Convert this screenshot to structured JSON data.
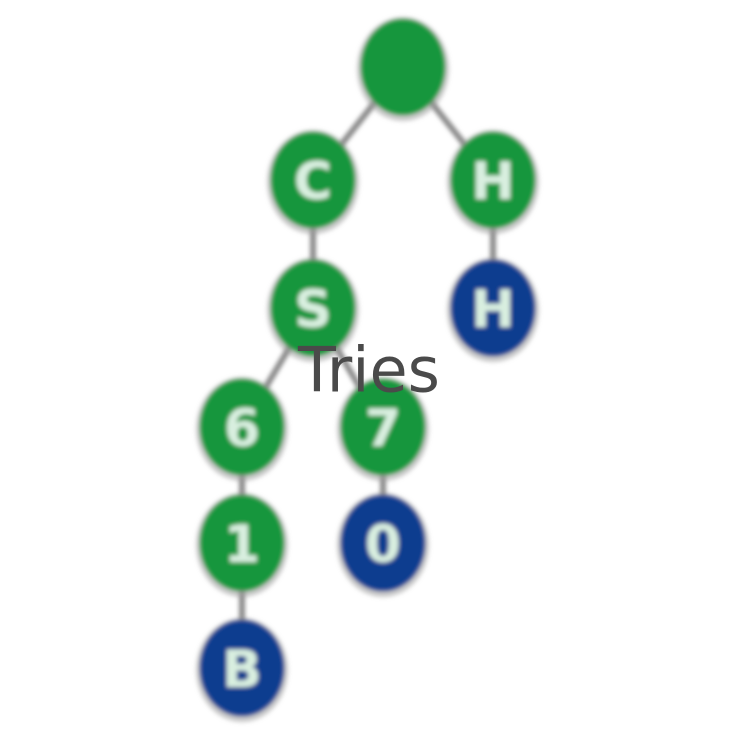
{
  "title": "Tries",
  "colors": {
    "inner_node": "#12963c",
    "leaf_node": "#0a3d8f",
    "edge": "#8a8a8a",
    "label": "#d9efe0",
    "title": "#4a4a4a"
  },
  "nodes": [
    {
      "id": "root",
      "label": "",
      "kind": "inner"
    },
    {
      "id": "c",
      "label": "C",
      "kind": "inner"
    },
    {
      "id": "h1",
      "label": "H",
      "kind": "inner"
    },
    {
      "id": "s",
      "label": "S",
      "kind": "inner"
    },
    {
      "id": "h2",
      "label": "H",
      "kind": "leaf"
    },
    {
      "id": "n6",
      "label": "6",
      "kind": "inner"
    },
    {
      "id": "n7",
      "label": "7",
      "kind": "inner"
    },
    {
      "id": "n1",
      "label": "1",
      "kind": "inner"
    },
    {
      "id": "n0",
      "label": "0",
      "kind": "leaf"
    },
    {
      "id": "b",
      "label": "B",
      "kind": "leaf"
    }
  ],
  "edges": [
    [
      "root",
      "c"
    ],
    [
      "root",
      "h1"
    ],
    [
      "c",
      "s"
    ],
    [
      "h1",
      "h2"
    ],
    [
      "s",
      "n6"
    ],
    [
      "s",
      "n7"
    ],
    [
      "n6",
      "n1"
    ],
    [
      "n7",
      "n0"
    ],
    [
      "n1",
      "b"
    ]
  ]
}
